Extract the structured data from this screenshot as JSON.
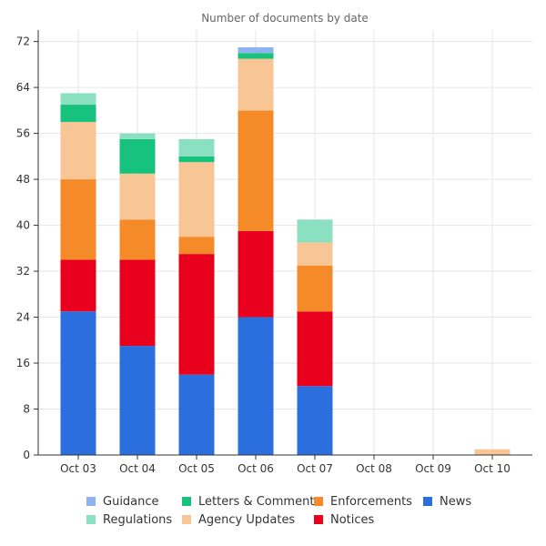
{
  "chart_data": {
    "type": "bar",
    "stacked": true,
    "title": "Number of documents by date",
    "xlabel": "",
    "ylabel": "",
    "ylim": [
      0,
      74
    ],
    "yticks": [
      0,
      8,
      16,
      24,
      32,
      40,
      48,
      56,
      64,
      72
    ],
    "grid": true,
    "legend_position": "bottom",
    "categories": [
      "Oct 03",
      "Oct 04",
      "Oct 05",
      "Oct 06",
      "Oct 07",
      "Oct 08",
      "Oct 09",
      "Oct 10"
    ],
    "series": [
      {
        "name": "News",
        "color": "#2b6fdf",
        "values": [
          25,
          19,
          14,
          24,
          12,
          0,
          0,
          0
        ]
      },
      {
        "name": "Notices",
        "color": "#e8001c",
        "values": [
          9,
          15,
          21,
          15,
          13,
          0,
          0,
          0
        ]
      },
      {
        "name": "Enforcements",
        "color": "#f58a28",
        "values": [
          14,
          7,
          3,
          21,
          8,
          0,
          0,
          0
        ]
      },
      {
        "name": "Agency Updates",
        "color": "#f8c594",
        "values": [
          10,
          8,
          13,
          9,
          4,
          0,
          0,
          1
        ]
      },
      {
        "name": "Letters & Comments",
        "color": "#17c27f",
        "values": [
          3,
          6,
          1,
          1,
          0,
          0,
          0,
          0
        ]
      },
      {
        "name": "Regulations",
        "color": "#8ce0c2",
        "values": [
          2,
          1,
          3,
          0,
          4,
          0,
          0,
          0
        ]
      },
      {
        "name": "Guidance",
        "color": "#8fb3f0",
        "values": [
          0,
          0,
          0,
          1,
          0,
          0,
          0,
          0
        ]
      }
    ],
    "legend_order": [
      "Guidance",
      "Letters & Comments",
      "Enforcements",
      "News",
      "Regulations",
      "Agency Updates",
      "Notices"
    ]
  }
}
